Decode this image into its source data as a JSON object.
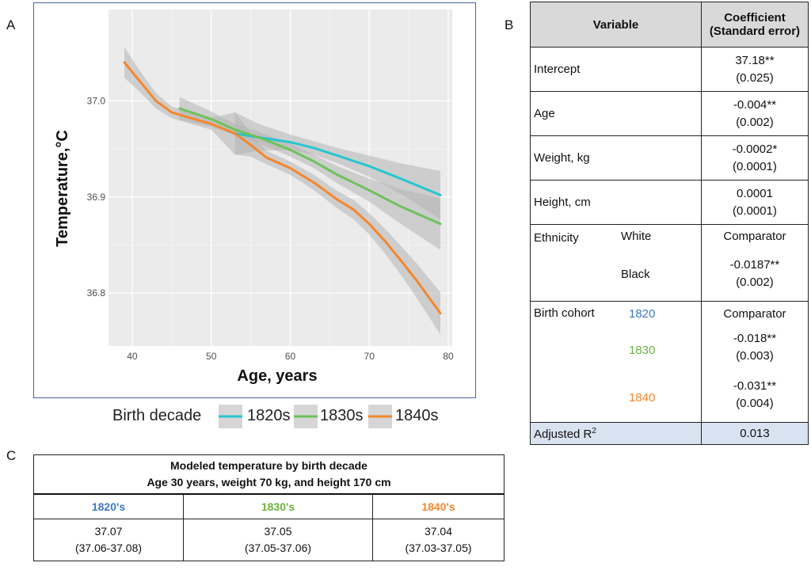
{
  "panel_labels": {
    "a": "A",
    "b": "B",
    "c": "C"
  },
  "colors": {
    "1820s": "#26c6cf",
    "1830s": "#6cc35a",
    "1840s": "#f5862c",
    "panel_bg": "#ebebeb",
    "band": "#b4b4b4"
  },
  "chart_data": {
    "type": "line",
    "title": "",
    "xlabel": "Age, years",
    "ylabel": "Temperature,°C",
    "xlim": [
      37,
      80.5
    ],
    "ylim": [
      36.745,
      37.095
    ],
    "x_ticks": [
      40,
      50,
      60,
      70,
      80
    ],
    "x_tick_labels": [
      "40",
      "50",
      "60",
      "70",
      "80"
    ],
    "y_ticks": [
      36.8,
      36.9,
      37.0
    ],
    "y_tick_labels": [
      "36.8",
      "36.9",
      "37.0"
    ],
    "grid": true,
    "legend": {
      "title": "Birth decade",
      "position": "bottom"
    },
    "series": [
      {
        "name": "1820s",
        "color_key": "1820s",
        "x": [
          53,
          56,
          60,
          63,
          66,
          70,
          74,
          79
        ],
        "y": [
          36.966,
          36.962,
          36.957,
          36.951,
          36.943,
          36.932,
          36.919,
          36.902
        ],
        "band": [
          0.022,
          0.014,
          0.008,
          0.007,
          0.008,
          0.011,
          0.016,
          0.025
        ]
      },
      {
        "name": "1830s",
        "color_key": "1830s",
        "x": [
          46,
          50,
          53,
          56,
          60,
          63,
          66,
          70,
          74,
          79
        ],
        "y": [
          36.992,
          36.981,
          36.97,
          36.962,
          36.949,
          36.937,
          36.923,
          36.907,
          36.89,
          36.872
        ],
        "band": [
          0.012,
          0.008,
          0.006,
          0.006,
          0.007,
          0.007,
          0.009,
          0.012,
          0.018,
          0.027
        ]
      },
      {
        "name": "1840s",
        "color_key": "1840s",
        "x": [
          39,
          41,
          43,
          45,
          47,
          50,
          53,
          55,
          57,
          60,
          63,
          66,
          68,
          70,
          72,
          74,
          76,
          79
        ],
        "y": [
          37.04,
          37.02,
          37.0,
          36.988,
          36.983,
          36.976,
          36.966,
          36.954,
          36.941,
          36.93,
          36.915,
          36.897,
          36.887,
          36.872,
          36.854,
          36.834,
          36.813,
          36.779
        ],
        "band": [
          0.016,
          0.011,
          0.008,
          0.006,
          0.006,
          0.006,
          0.022,
          0.012,
          0.007,
          0.007,
          0.008,
          0.009,
          0.01,
          0.011,
          0.013,
          0.015,
          0.018,
          0.022
        ]
      }
    ]
  },
  "table_b": {
    "header_variable": "Variable",
    "header_coef_line1": "Coefficient",
    "header_coef_line2": "(Standard error)",
    "intercept": {
      "label": "Intercept",
      "coef": "37.18**",
      "se": "(0.025)"
    },
    "age": {
      "label": "Age",
      "coef": "-0.004**",
      "se": "(0.002)"
    },
    "weight": {
      "label": "Weight, kg",
      "coef": "-0.0002*",
      "se": "(0.0001)"
    },
    "height": {
      "label": "Height, cm",
      "coef": "0.0001",
      "se": "(0.0001)"
    },
    "ethnicity": {
      "label": "Ethnicity",
      "white": "White",
      "white_value": "Comparator",
      "black": "Black",
      "black_coef": "-0.0187**",
      "black_se": "(0.002)"
    },
    "cohort": {
      "label": "Birth cohort",
      "c1820": "1820",
      "c1820_value": "Comparator",
      "c1830": "1830",
      "c1830_coef": "-0.018**",
      "c1830_se": "(0.003)",
      "c1840": "1840",
      "c1840_coef": "-0.031**",
      "c1840_se": "(0.004)"
    },
    "adjusted_r2": {
      "label": "Adjusted R",
      "superscript": "2",
      "value": "0.013"
    }
  },
  "table_c": {
    "title_line1": "Modeled temperature by birth decade",
    "title_line2": "Age 30 years, weight 70 kg, and height 170 cm",
    "columns": [
      {
        "decade": "1820's",
        "value": "37.07",
        "ci": "(37.06-37.08)"
      },
      {
        "decade": "1830's",
        "value": "37.05",
        "ci": "(37.05-37.06)"
      },
      {
        "decade": "1840's",
        "value": "37.04",
        "ci": "(37.03-37.05)"
      }
    ]
  }
}
